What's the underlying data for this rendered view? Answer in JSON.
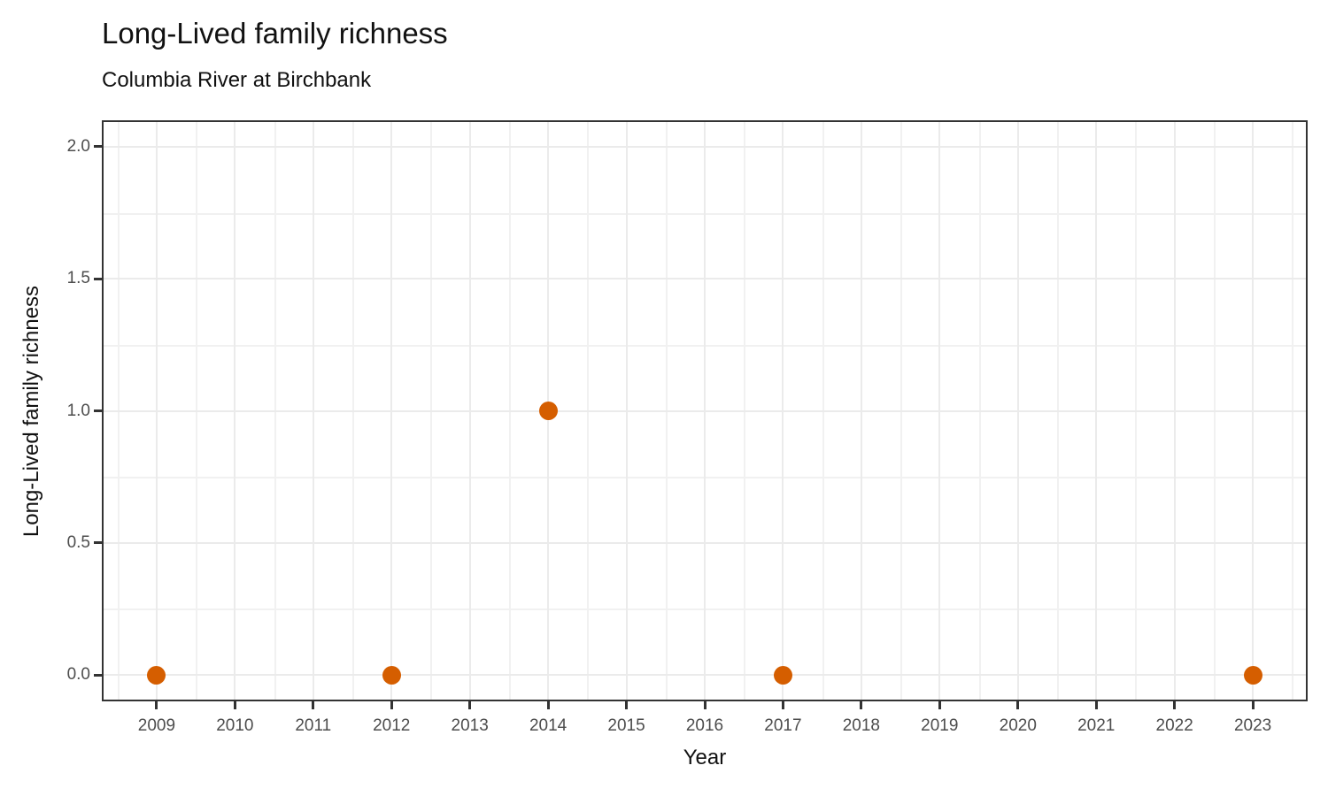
{
  "chart_data": {
    "type": "scatter",
    "title": "Long-Lived family richness",
    "subtitle": "Columbia River at Birchbank",
    "xlabel": "Year",
    "ylabel": "Long-Lived family richness",
    "x_ticks": [
      2009,
      2010,
      2011,
      2012,
      2013,
      2014,
      2015,
      2016,
      2017,
      2018,
      2019,
      2020,
      2021,
      2022,
      2023
    ],
    "y_ticks": [
      {
        "value": 0.0,
        "label": "0.0"
      },
      {
        "value": 0.5,
        "label": "0.5"
      },
      {
        "value": 1.0,
        "label": "1.0"
      },
      {
        "value": 1.5,
        "label": "1.5"
      },
      {
        "value": 2.0,
        "label": "2.0"
      }
    ],
    "xlim": [
      2008.3,
      2023.7
    ],
    "ylim": [
      -0.1,
      2.1
    ],
    "points": [
      {
        "x": 2009,
        "y": 0
      },
      {
        "x": 2012,
        "y": 0
      },
      {
        "x": 2014,
        "y": 1
      },
      {
        "x": 2017,
        "y": 0
      },
      {
        "x": 2023,
        "y": 0
      }
    ],
    "grid": true,
    "legend": "none",
    "colors": {
      "point": "#D55E00",
      "grid_major": "#EBEBEB",
      "grid_minor": "#F1F1F1",
      "panel_border": "#333333",
      "tick_mark": "#333333",
      "tick_label": "#4D4D4D",
      "title_text": "#111111"
    }
  }
}
